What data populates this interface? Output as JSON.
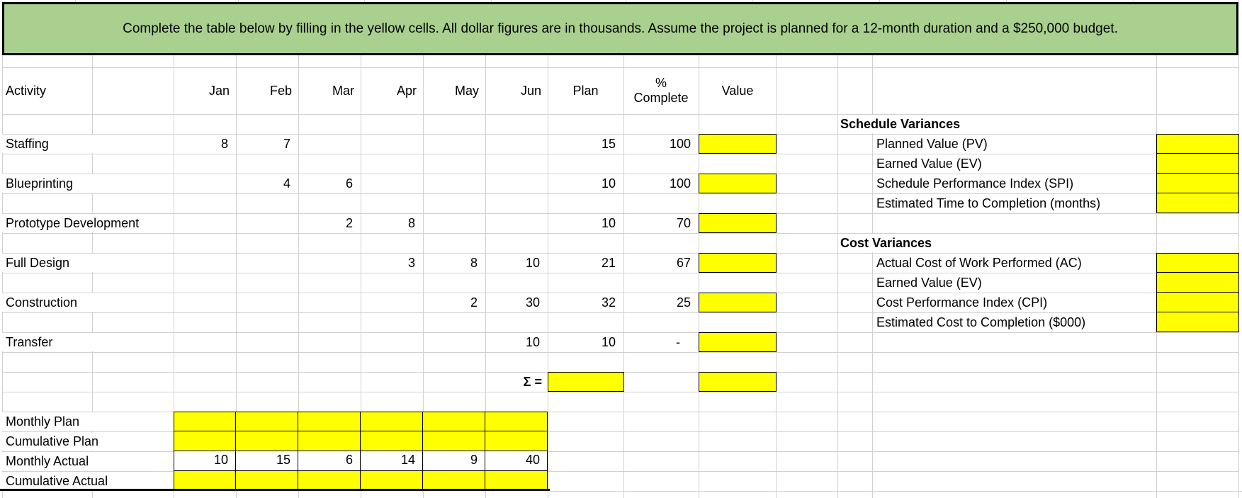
{
  "banner": {
    "text": "Complete the table below by filling in the yellow cells. All dollar figures are in thousands.  Assume the project is planned for a 12-month duration and a $250,000 budget."
  },
  "colors": {
    "highlight_yellow": "#ffff00",
    "banner_green": "#a9d08e",
    "gridline_grey": "#d1d1d1"
  },
  "table": {
    "headers": {
      "activity": "Activity",
      "months": [
        "Jan",
        "Feb",
        "Mar",
        "Apr",
        "May",
        "Jun"
      ],
      "plan": "Plan",
      "pct_line1": "%",
      "pct_line2": "Complete",
      "value": "Value"
    },
    "activities": [
      {
        "name": "Staffing",
        "jan": "8",
        "feb": "7",
        "mar": "",
        "apr": "",
        "may": "",
        "jun": "",
        "plan": "15",
        "pct": "100"
      },
      {
        "name": "Blueprinting",
        "jan": "",
        "feb": "4",
        "mar": "6",
        "apr": "",
        "may": "",
        "jun": "",
        "plan": "10",
        "pct": "100"
      },
      {
        "name": "Prototype Development",
        "jan": "",
        "feb": "",
        "mar": "2",
        "apr": "8",
        "may": "",
        "jun": "",
        "plan": "10",
        "pct": "70"
      },
      {
        "name": "Full Design",
        "jan": "",
        "feb": "",
        "mar": "",
        "apr": "3",
        "may": "8",
        "jun": "10",
        "plan": "21",
        "pct": "67"
      },
      {
        "name": "Construction",
        "jan": "",
        "feb": "",
        "mar": "",
        "apr": "",
        "may": "2",
        "jun": "30",
        "plan": "32",
        "pct": "25"
      },
      {
        "name": "Transfer",
        "jan": "",
        "feb": "",
        "mar": "",
        "apr": "",
        "may": "",
        "jun": "10",
        "plan": "10",
        "pct": "-"
      }
    ],
    "sum_label": "Σ =",
    "bottom_rows": [
      {
        "name": "Monthly Plan",
        "values": [
          "",
          "",
          "",
          "",
          "",
          ""
        ],
        "highlight": true
      },
      {
        "name": "Cumulative Plan",
        "values": [
          "",
          "",
          "",
          "",
          "",
          ""
        ],
        "highlight": true
      },
      {
        "name": "Monthly Actual",
        "values": [
          "10",
          "15",
          "6",
          "14",
          "9",
          "40"
        ],
        "highlight": false
      },
      {
        "name": "Cumulative Actual",
        "values": [
          "",
          "",
          "",
          "",
          "",
          ""
        ],
        "highlight": true
      }
    ]
  },
  "variances": {
    "schedule": {
      "title": "Schedule Variances",
      "items": [
        "Planned Value (PV)",
        "Earned Value (EV)",
        "Schedule Performance Index (SPI)",
        "Estimated Time to Completion (months)"
      ]
    },
    "cost": {
      "title": "Cost Variances",
      "items": [
        "Actual Cost of Work Performed (AC)",
        "Earned Value (EV)",
        "Cost Performance Index (CPI)",
        "Estimated Cost to Completion ($000)"
      ]
    }
  }
}
